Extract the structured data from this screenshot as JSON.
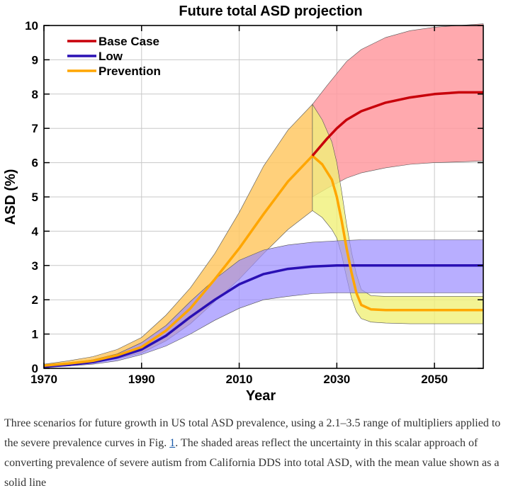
{
  "chart_data": {
    "type": "area",
    "title": "Future total ASD projection",
    "xlabel": "Year",
    "ylabel": "ASD (%)",
    "xlim": [
      1970,
      2060
    ],
    "ylim": [
      0,
      10
    ],
    "x_ticks": [
      1970,
      1990,
      2010,
      2030,
      2050
    ],
    "y_ticks": [
      0,
      1,
      2,
      3,
      4,
      5,
      6,
      7,
      8,
      9,
      10
    ],
    "grid": true,
    "legend_position": "top-left",
    "series": [
      {
        "name": "Base Case",
        "color": "#c8000a",
        "band_color": "#ff9aa0",
        "x": [
          2025,
          2028,
          2030,
          2032,
          2035,
          2040,
          2045,
          2050,
          2055,
          2060
        ],
        "mean": [
          6.2,
          6.7,
          7.0,
          7.25,
          7.5,
          7.75,
          7.9,
          8.0,
          8.05,
          8.05
        ],
        "lower": [
          5.0,
          5.25,
          5.4,
          5.55,
          5.7,
          5.85,
          5.95,
          6.0,
          6.02,
          6.05
        ],
        "upper": [
          7.7,
          8.25,
          8.6,
          8.95,
          9.3,
          9.65,
          9.85,
          9.95,
          10.0,
          10.05
        ]
      },
      {
        "name": "Low",
        "color": "#2a10b4",
        "band_color": "#9a8cff",
        "x": [
          1970,
          1975,
          1980,
          1985,
          1990,
          1995,
          2000,
          2005,
          2010,
          2015,
          2020,
          2025,
          2030,
          2035,
          2040,
          2050,
          2060
        ],
        "mean": [
          0.05,
          0.1,
          0.18,
          0.32,
          0.55,
          0.95,
          1.5,
          2.0,
          2.45,
          2.75,
          2.9,
          2.97,
          3.0,
          3.0,
          3.0,
          3.0,
          3.0
        ],
        "lower": [
          0.03,
          0.07,
          0.12,
          0.22,
          0.4,
          0.65,
          1.0,
          1.4,
          1.75,
          2.0,
          2.1,
          2.18,
          2.2,
          2.2,
          2.2,
          2.2,
          2.2
        ],
        "upper": [
          0.08,
          0.15,
          0.25,
          0.42,
          0.75,
          1.25,
          1.95,
          2.6,
          3.15,
          3.45,
          3.6,
          3.68,
          3.72,
          3.75,
          3.75,
          3.75,
          3.75
        ]
      },
      {
        "name": "Prevention",
        "color": "#ffa600",
        "band_color": "#ffc864",
        "band2_color": "#f0f078",
        "x": [
          1970,
          1975,
          1980,
          1985,
          1990,
          1995,
          2000,
          2005,
          2010,
          2015,
          2020,
          2025,
          2027,
          2029,
          2030,
          2031,
          2032,
          2033,
          2034,
          2035,
          2037,
          2040,
          2045,
          2050,
          2055,
          2060
        ],
        "mean": [
          0.08,
          0.14,
          0.22,
          0.38,
          0.62,
          1.1,
          1.75,
          2.6,
          3.5,
          4.5,
          5.45,
          6.2,
          5.95,
          5.5,
          5.0,
          4.3,
          3.5,
          2.8,
          2.2,
          1.85,
          1.72,
          1.7,
          1.7,
          1.7,
          1.7,
          1.7
        ],
        "lower": [
          0.05,
          0.1,
          0.16,
          0.28,
          0.45,
          0.8,
          1.3,
          1.95,
          2.6,
          3.35,
          4.05,
          4.6,
          4.4,
          4.05,
          3.8,
          3.3,
          2.65,
          2.05,
          1.65,
          1.45,
          1.35,
          1.32,
          1.3,
          1.3,
          1.3,
          1.3
        ],
        "upper": [
          0.12,
          0.22,
          0.34,
          0.55,
          0.9,
          1.55,
          2.35,
          3.35,
          4.55,
          5.9,
          6.95,
          7.7,
          7.25,
          6.6,
          6.0,
          5.15,
          4.2,
          3.4,
          2.75,
          2.3,
          2.12,
          2.1,
          2.1,
          2.1,
          2.1,
          2.1
        ]
      }
    ]
  },
  "caption": {
    "before_ref": "Three scenarios for future growth in US total ASD prevalence, using a 2.1–3.5 range of multipliers applied to the severe prevalence curves in Fig. ",
    "ref": "1",
    "after_ref": ". The shaded areas reflect the uncertainty in this scalar approach of converting prevalence of severe autism from California DDS into total ASD, with the mean value shown as a solid line"
  }
}
